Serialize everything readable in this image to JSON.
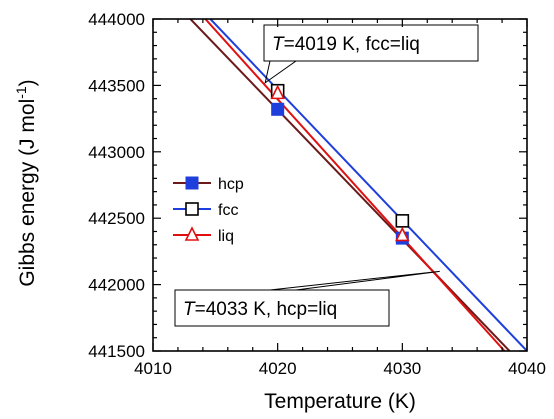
{
  "chart_data": {
    "type": "line",
    "title": "",
    "xlabel": "Temperature (K)",
    "ylabel": "Gibbs energy (J mol",
    "ylabel_exponent": "-1",
    "ylabel_close": ")",
    "xlim": [
      4010,
      4040
    ],
    "ylim": [
      441500,
      444000
    ],
    "x_ticks": [
      4010,
      4020,
      4030,
      4040
    ],
    "y_ticks": [
      441500,
      442000,
      442500,
      443000,
      443500,
      444000
    ],
    "grid": false,
    "legend_position": "center-left",
    "series": [
      {
        "name": "hcp",
        "color": "#6b1a1a",
        "marker": "square-filled",
        "marker_color": "#1f3fdc",
        "line": [
          [
            4013.0,
            444000
          ],
          [
            4038.6,
            441500
          ]
        ],
        "points": [
          {
            "x": 4020,
            "y": 443320
          },
          {
            "x": 4030,
            "y": 442350
          }
        ]
      },
      {
        "name": "fcc",
        "color": "#1f3fdc",
        "marker": "square-open",
        "marker_color": "#000000",
        "line": [
          [
            4014.6,
            444000
          ],
          [
            4040.0,
            441500
          ]
        ],
        "points": [
          {
            "x": 4020,
            "y": 443460
          },
          {
            "x": 4030,
            "y": 442480
          }
        ]
      },
      {
        "name": "liq",
        "color": "#e01010",
        "marker": "triangle-open",
        "marker_color": "#e01010",
        "line": [
          [
            4014.2,
            444000
          ],
          [
            4038.2,
            441500
          ]
        ],
        "points": [
          {
            "x": 4020,
            "y": 443440
          },
          {
            "x": 4030,
            "y": 442370
          }
        ]
      }
    ],
    "annotations": [
      {
        "italic": "T",
        "text": "=4019 K, fcc=liq",
        "point": {
          "x": 4019,
          "y": 443520
        }
      },
      {
        "italic": "T",
        "text": "=4033 K, hcp=liq",
        "point": {
          "x": 4033,
          "y": 442100
        }
      }
    ]
  }
}
